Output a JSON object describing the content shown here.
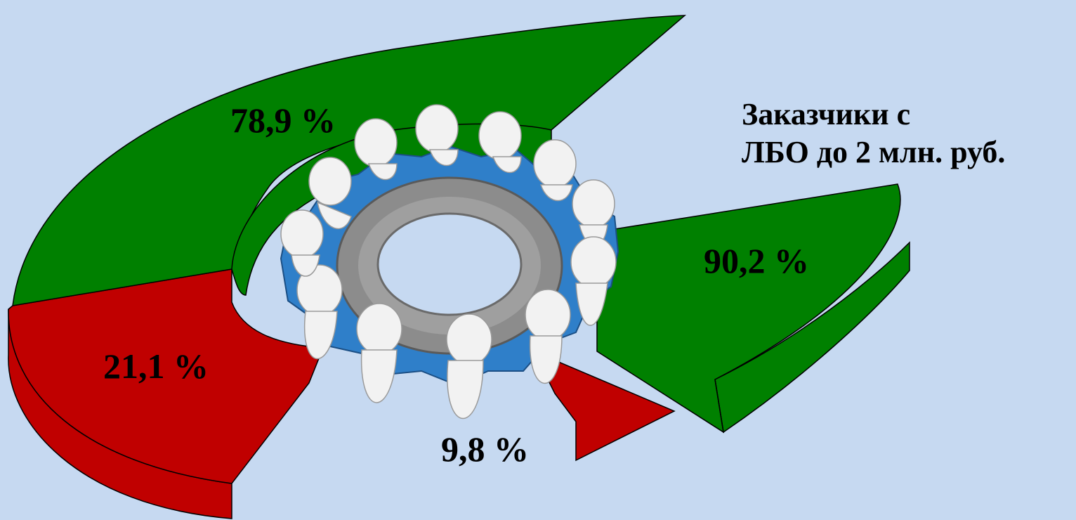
{
  "chart_data": [
    {
      "type": "pie",
      "labels": [
        "78,9 %",
        "21,1 %"
      ],
      "values": [
        78.9,
        21.1
      ],
      "colors": [
        "#008000",
        "#c00000"
      ]
    },
    {
      "type": "pie",
      "title": "Заказчики с ЛБО до  2 млн. руб.",
      "title_lines": [
        "Заказчики с",
        "ЛБО до  2 млн. руб."
      ],
      "labels": [
        "90,2 %",
        "9,8 %"
      ],
      "values": [
        90.2,
        9.8
      ],
      "colors": [
        "#008000",
        "#c00000"
      ]
    }
  ],
  "center_image": "people-turning-gear-icon"
}
